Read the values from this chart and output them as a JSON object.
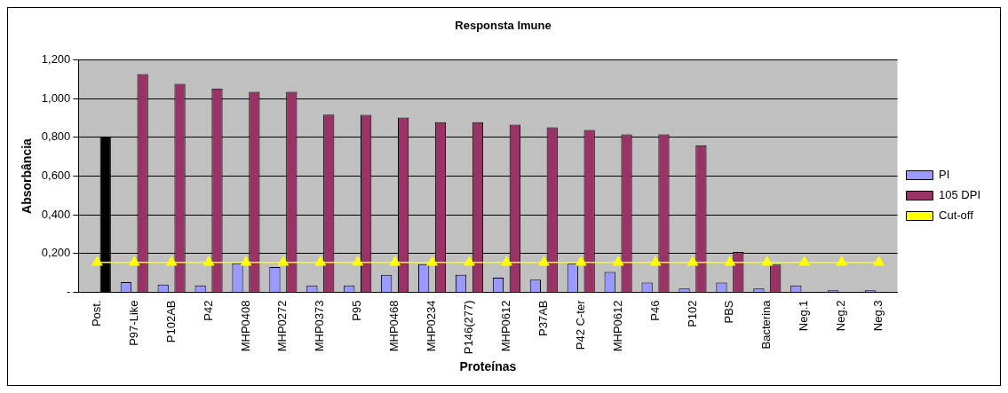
{
  "chart_data": {
    "type": "bar",
    "title": "Responsta Imune",
    "xlabel": "Proteínas",
    "ylabel": "Absorbância",
    "categories": [
      "Post.",
      "P97-Like",
      "P102AB",
      "P42",
      "MHP0408",
      "MHP0272",
      "MHP0373",
      "P95",
      "MHP0468",
      "MHP0234",
      "P146(277)",
      "MHP0612",
      "P37AB",
      "P42 C-ter",
      "MHP0612",
      "P46",
      "P102",
      "PBS",
      "Bacterina",
      "Neg.1",
      "Neg.2",
      "Neg.3"
    ],
    "series": [
      {
        "name": "PI",
        "color": "#9999ff",
        "values": [
          null,
          0.053,
          0.04,
          0.035,
          0.15,
          0.13,
          0.035,
          0.035,
          0.09,
          0.145,
          0.09,
          0.075,
          0.065,
          0.148,
          0.105,
          0.05,
          0.02,
          0.05,
          0.02,
          0.035,
          0.01,
          0.01
        ]
      },
      {
        "name": "105 DPI",
        "color": "#993366",
        "colors": [
          "#000000",
          "#993366",
          "#993366",
          "#993366",
          "#993366",
          "#993366",
          "#993366",
          "#993366",
          "#993366",
          "#993366",
          "#993366",
          "#993366",
          "#993366",
          "#993366",
          "#993366",
          "#993366",
          "#993366",
          "#993366",
          "#993366",
          "#993366",
          "#993366",
          "#993366"
        ],
        "values": [
          0.805,
          1.127,
          1.077,
          1.053,
          1.035,
          1.035,
          0.918,
          0.916,
          0.903,
          0.879,
          0.879,
          0.866,
          0.852,
          0.839,
          0.815,
          0.815,
          0.76,
          0.209,
          0.143,
          null,
          null,
          null
        ]
      },
      {
        "name": "Cut-off",
        "type": "line",
        "color": "#ffff00",
        "marker": "triangle",
        "values": [
          0.155,
          0.155,
          0.155,
          0.155,
          0.155,
          0.155,
          0.155,
          0.155,
          0.155,
          0.155,
          0.155,
          0.155,
          0.155,
          0.155,
          0.155,
          0.155,
          0.155,
          0.155,
          0.155,
          0.155,
          0.155,
          0.155
        ]
      }
    ],
    "ylim": [
      0,
      1.2
    ],
    "yticks": [
      {
        "value": 0,
        "label": "-"
      },
      {
        "value": 0.2,
        "label": "0,200"
      },
      {
        "value": 0.4,
        "label": "0,400"
      },
      {
        "value": 0.6,
        "label": "0,600"
      },
      {
        "value": 0.8,
        "label": "0,800"
      },
      {
        "value": 1,
        "label": "1,000"
      },
      {
        "value": 1.2,
        "label": "1,200"
      }
    ],
    "grid": "y",
    "legend": "right"
  }
}
